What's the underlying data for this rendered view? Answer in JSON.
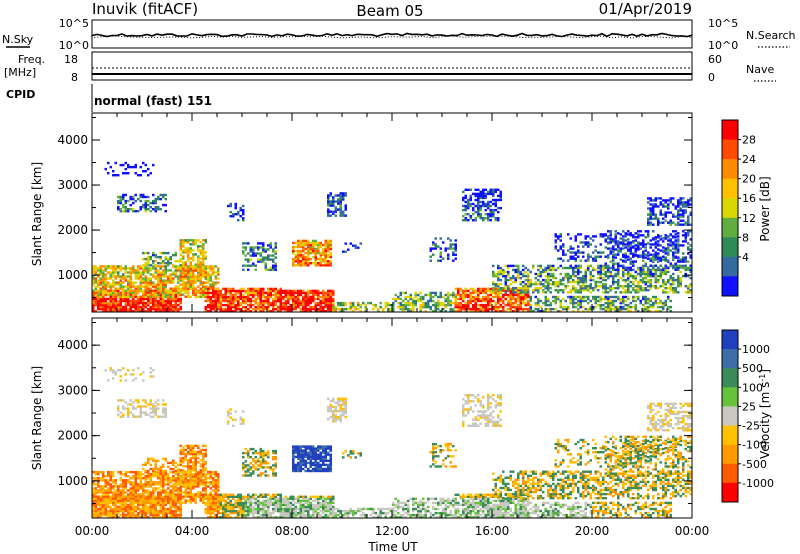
{
  "header": {
    "station": "Inuvik (fitACF)",
    "beam": "Beam 05",
    "date": "01/Apr/2019"
  },
  "labels": {
    "nsky": "N.Sky",
    "nsearch": "N.Search",
    "freq": "Freq.",
    "freq_unit": "[MHz]",
    "nave": "Nave",
    "cpid": "CPID",
    "cpid_value": "normal (fast) 151",
    "xlabel": "Time UT"
  },
  "noise_panel": {
    "left_ticks": [
      "10^5",
      "10^0"
    ],
    "right_ticks": [
      "10^5",
      "10^0"
    ]
  },
  "freq_panel": {
    "left_ticks": [
      "18",
      "8"
    ],
    "right_ticks": [
      "60",
      "0"
    ]
  },
  "chart_data": [
    {
      "type": "heatmap",
      "name": "power",
      "ylabel": "Slant Range [km]",
      "ylim": [
        180,
        4600
      ],
      "yticks": [
        "1000",
        "2000",
        "3000",
        "4000"
      ],
      "xticks": [
        "00:00",
        "04:00",
        "08:00",
        "12:00",
        "16:00",
        "20:00",
        "00:00"
      ],
      "colorbar": {
        "label": "Power [dB]",
        "ticks": [
          "28",
          "24",
          "20",
          "16",
          "12",
          "8",
          "4"
        ],
        "colors": [
          "#ff0000",
          "#ff4a00",
          "#ff8c00",
          "#ffc000",
          "#d8d800",
          "#5fae3f",
          "#2e8b57",
          "#356aa0",
          "#1010ff"
        ]
      }
    },
    {
      "type": "heatmap",
      "name": "velocity",
      "ylabel": "Slant Range [km]",
      "ylim": [
        180,
        4600
      ],
      "yticks": [
        "1000",
        "2000",
        "3000",
        "4000"
      ],
      "xticks": [
        "00:00",
        "04:00",
        "08:00",
        "12:00",
        "16:00",
        "20:00",
        "00:00"
      ],
      "colorbar": {
        "label": "Velocity [m s",
        "label_sup": "-1",
        "label_close": "]",
        "ticks": [
          "1000",
          "500",
          "100",
          "25",
          "-25",
          "-100",
          "-500",
          "-1000"
        ],
        "colors": [
          "#2040c0",
          "#3c6ea8",
          "#3a8a5a",
          "#66c23a",
          "#c8c8c0",
          "#ffc000",
          "#ff9a00",
          "#ff5a00",
          "#ff0000"
        ]
      }
    }
  ]
}
